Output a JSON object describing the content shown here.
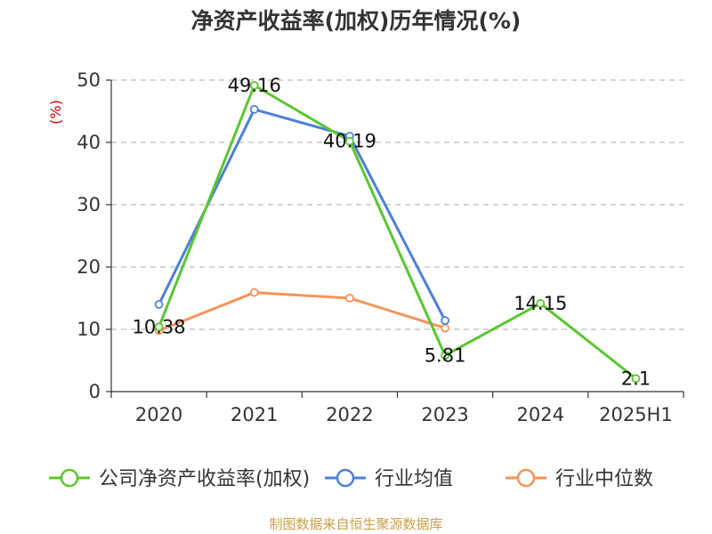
{
  "chart_data": {
    "type": "line",
    "title": "净资产收益率(加权)历年情况(%)",
    "ylabel": "(%)",
    "categories": [
      "2020",
      "2021",
      "2022",
      "2023",
      "2024",
      "2025H1"
    ],
    "ylim": [
      0,
      50
    ],
    "yticks": [
      "0",
      "10",
      "20",
      "30",
      "40",
      "50"
    ],
    "grid": true,
    "legend_position": "bottom",
    "series": [
      {
        "name": "公司净资产收益率(加权)",
        "color": "#5cc531",
        "values": [
          10.38,
          49.16,
          40.19,
          5.81,
          14.15,
          2.1
        ],
        "labels": [
          "10.38",
          "49.16",
          "40.19",
          "5.81",
          "14.15",
          "2.1"
        ]
      },
      {
        "name": "行业均值",
        "color": "#4e7fd6",
        "values": [
          14.0,
          45.3,
          41.0,
          11.4,
          null,
          null
        ]
      },
      {
        "name": "行业中位数",
        "color": "#f5935a",
        "values": [
          9.8,
          15.9,
          15.0,
          10.2,
          null,
          null
        ]
      }
    ],
    "source": "制图数据来自恒生聚源数据库"
  }
}
